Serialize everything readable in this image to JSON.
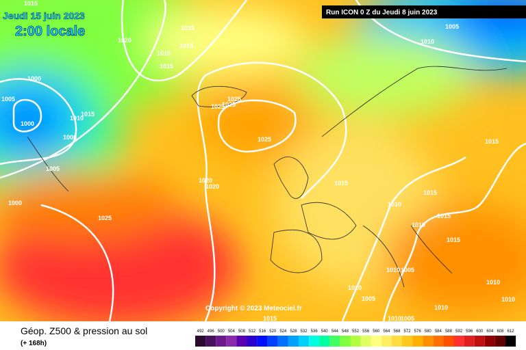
{
  "header": {
    "date": "Jeudi 15 juin 2023",
    "time": "2:00 locale",
    "run": "Run ICON 0 Z du Jeudi 8 juin 2023"
  },
  "copyright": "Copyright © 2023 Meteociel.fr",
  "footer": {
    "title": "Géop. Z500 & pression au sol",
    "lead": "(+ 168h)"
  },
  "isobar_labels": [
    "1015",
    "1020",
    "1015",
    "1015",
    "1015",
    "1015",
    "1000",
    "1005",
    "1015",
    "1010",
    "1000",
    "1000",
    "1025",
    "1025",
    "1025",
    "1025",
    "1005",
    "1020",
    "1020",
    "1015",
    "1000",
    "1025",
    "1010",
    "1015",
    "1015",
    "1010",
    "1015",
    "1015",
    "1005",
    "1010",
    "1010",
    "1005",
    "1010",
    "1005",
    "1010",
    "1010",
    "1010",
    "1015",
    "1010",
    "1005"
  ],
  "legend": {
    "values": [
      492,
      496,
      500,
      504,
      508,
      512,
      516,
      520,
      524,
      528,
      532,
      536,
      540,
      544,
      548,
      552,
      556,
      560,
      564,
      568,
      572,
      576,
      580,
      584,
      588,
      592,
      596,
      600,
      604,
      608,
      612
    ],
    "colors": [
      "#2a0a2e",
      "#4a1060",
      "#6a1a8a",
      "#8a2aaa",
      "#5a00b0",
      "#2a00d0",
      "#0010ff",
      "#0040ff",
      "#0070ff",
      "#00a0ff",
      "#00d0ff",
      "#00ffe0",
      "#00ffa0",
      "#40ff60",
      "#80ff40",
      "#b0ff40",
      "#e0ff60",
      "#ffff80",
      "#ffee60",
      "#ffdd40",
      "#ffc820",
      "#ffb000",
      "#ff9000",
      "#ff7000",
      "#ff5000",
      "#ff3030",
      "#e02020",
      "#c01010",
      "#900000",
      "#600000",
      "#000000"
    ]
  }
}
